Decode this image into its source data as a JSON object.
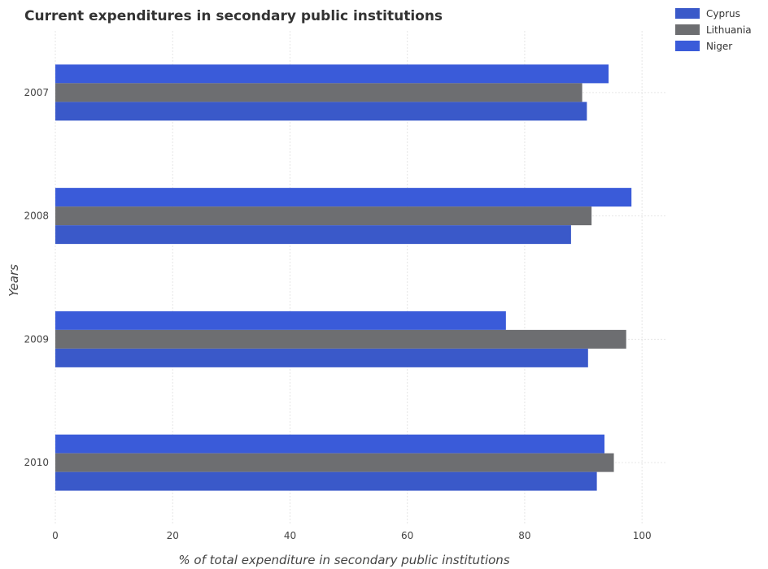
{
  "chart_data": {
    "type": "bar",
    "orientation": "horizontal",
    "title": "Current expenditures in secondary public institutions",
    "xlabel": "% of total expenditure in secondary public institutions",
    "ylabel": "Years",
    "categories": [
      "2007",
      "2008",
      "2009",
      "2010"
    ],
    "xlim": [
      0,
      104
    ],
    "xticks": [
      0,
      20,
      40,
      60,
      80,
      100
    ],
    "grid": true,
    "legend_position": "top-right",
    "series": [
      {
        "name": "Cyprus",
        "color": "#3a59c9",
        "values": [
          90.6,
          87.9,
          90.8,
          92.3
        ]
      },
      {
        "name": "Lithuania",
        "color": "#6d6e71",
        "values": [
          89.8,
          91.4,
          97.3,
          95.2
        ]
      },
      {
        "name": "Niger",
        "color": "#3a5bd9",
        "values": [
          94.3,
          98.2,
          76.8,
          93.6
        ]
      }
    ]
  }
}
